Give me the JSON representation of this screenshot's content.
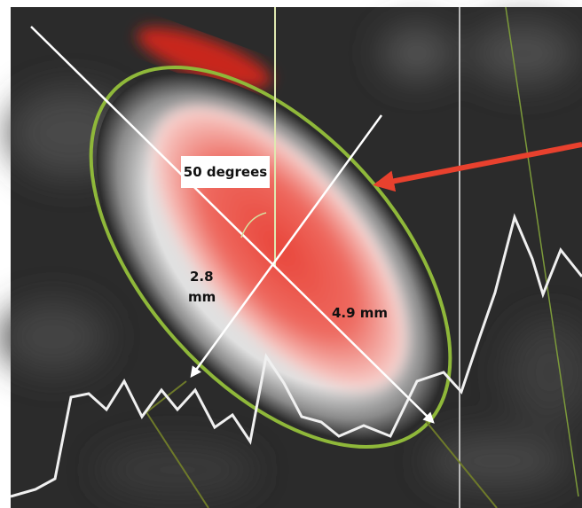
{
  "annotations": {
    "angle": "50 degrees",
    "minor_axis": [
      "2.8",
      "mm"
    ],
    "major_axis": "4.9 mm"
  }
}
